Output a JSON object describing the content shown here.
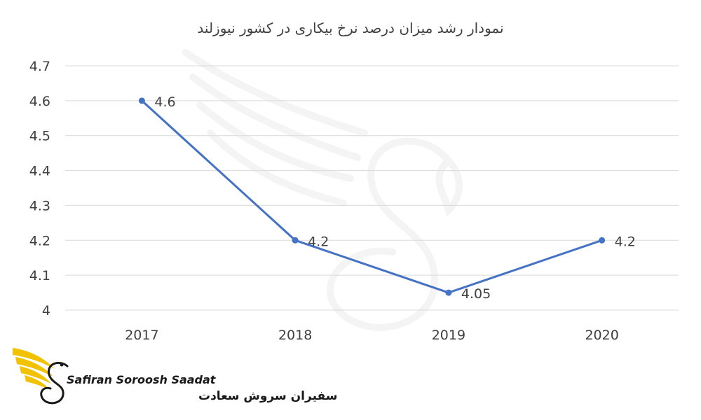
{
  "chart_data": {
    "type": "line",
    "title": "نمودار رشد میزان درصد نرخ بیکاری در کشور نیوزلند",
    "xlabel": "",
    "ylabel": "",
    "categories": [
      "2017",
      "2018",
      "2019",
      "2020"
    ],
    "series": [
      {
        "values": [
          4.6,
          4.2,
          4.05,
          4.2
        ],
        "data_labels": [
          "4.6",
          "4.2",
          "4.05",
          "4.2"
        ],
        "color": "#4472c4"
      }
    ],
    "ylim": [
      4,
      4.7
    ],
    "yticks": [
      "4",
      "4.1",
      "4.2",
      "4.3",
      "4.4",
      "4.5",
      "4.6",
      "4.7"
    ],
    "grid": true,
    "legend": "none"
  },
  "logo": {
    "latin_name": "Safiran Soroosh Saadat",
    "farsi_name": "سفیران سروش سعادت",
    "wing_color": "#f2c200"
  },
  "colors": {
    "series": "#4472c4",
    "grid": "#d9d9d9",
    "text": "#404040"
  }
}
